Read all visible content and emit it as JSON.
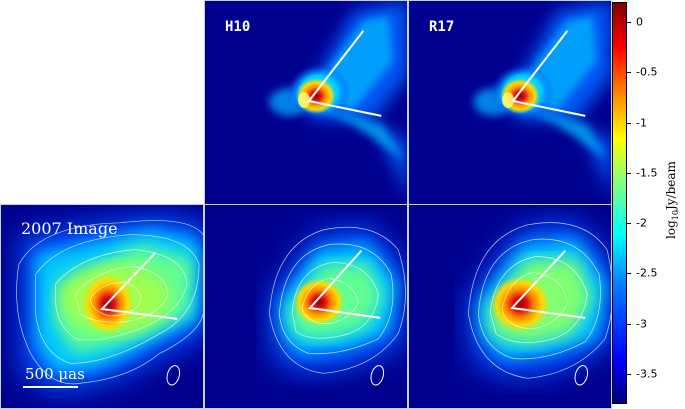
{
  "panels": {
    "top_mid_label": "H10",
    "top_right_label": "R17",
    "bottom_left_label": "2007 Image",
    "scale_bar_label": "500 μas"
  },
  "colorbar": {
    "title": "log10Jy/beam",
    "ticks": [
      "0",
      "-0.5",
      "-1",
      "-1.5",
      "-2",
      "-2.5",
      "-3",
      "-3.5"
    ],
    "range": [
      -3.8,
      0.2
    ],
    "colors": [
      "#00007f",
      "#0000ff",
      "#0080ff",
      "#00ffff",
      "#80ff80",
      "#ffff00",
      "#ff8000",
      "#ff0000",
      "#7f0000"
    ]
  }
}
